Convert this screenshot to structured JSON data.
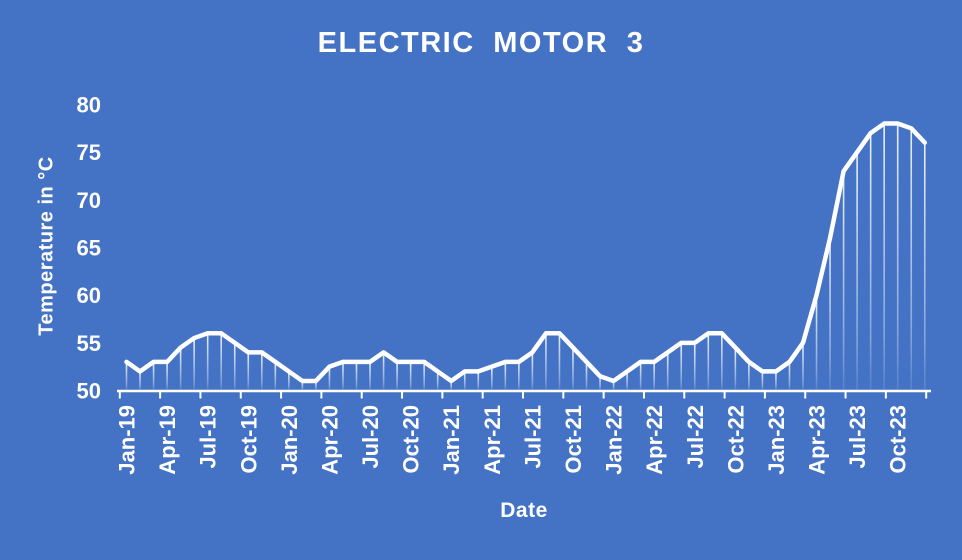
{
  "window": {
    "background": "#4472C4"
  },
  "chart": {
    "title": "ELECTRIC MOTOR 3",
    "xlabel": "Date",
    "ylabel": "Temperature in °C"
  },
  "chart_data": {
    "type": "line",
    "title": "ELECTRIC MOTOR 3",
    "xlabel": "Date",
    "ylabel": "Temperature in °C",
    "ylim": [
      50,
      80
    ],
    "yticks": [
      50,
      55,
      60,
      65,
      70,
      75,
      80
    ],
    "x_tick_labels": [
      "Jan-19",
      "Apr-19",
      "Jul-19",
      "Oct-19",
      "Jan-20",
      "Apr-20",
      "Jul-20",
      "Oct-20",
      "Jan-21",
      "Apr-21",
      "Jul-21",
      "Oct-21",
      "Jan-22",
      "Apr-22",
      "Jul-22",
      "Oct-22",
      "Jan-23",
      "Apr-23",
      "Jul-23",
      "Oct-23"
    ],
    "categories": [
      "Jan-19",
      "Feb-19",
      "Mar-19",
      "Apr-19",
      "May-19",
      "Jun-19",
      "Jul-19",
      "Aug-19",
      "Sep-19",
      "Oct-19",
      "Nov-19",
      "Dec-19",
      "Jan-20",
      "Feb-20",
      "Mar-20",
      "Apr-20",
      "May-20",
      "Jun-20",
      "Jul-20",
      "Aug-20",
      "Sep-20",
      "Oct-20",
      "Nov-20",
      "Dec-20",
      "Jan-21",
      "Feb-21",
      "Mar-21",
      "Apr-21",
      "May-21",
      "Jun-21",
      "Jul-21",
      "Aug-21",
      "Sep-21",
      "Oct-21",
      "Nov-21",
      "Dec-21",
      "Jan-22",
      "Feb-22",
      "Mar-22",
      "Apr-22",
      "May-22",
      "Jun-22",
      "Jul-22",
      "Aug-22",
      "Sep-22",
      "Oct-22",
      "Nov-22",
      "Dec-22",
      "Jan-23",
      "Feb-23",
      "Mar-23",
      "Apr-23",
      "May-23",
      "Jun-23",
      "Jul-23",
      "Aug-23",
      "Sep-23",
      "Oct-23",
      "Nov-23",
      "Dec-23"
    ],
    "series": [
      {
        "name": "Temperature",
        "values": [
          53,
          52,
          53,
          53,
          54.5,
          55.5,
          56,
          56,
          55,
          54,
          54,
          53,
          52,
          51,
          51,
          52.5,
          53,
          53,
          53,
          54,
          53,
          53,
          53,
          52,
          51,
          52,
          52,
          52.5,
          53,
          53,
          54,
          56,
          56,
          54.5,
          53,
          51.5,
          51,
          52,
          53,
          53,
          54,
          55,
          55,
          56,
          56,
          54.5,
          53,
          52,
          52,
          53,
          55,
          60,
          66,
          73,
          75,
          77,
          78,
          78,
          77.5,
          76
        ]
      }
    ],
    "legend": false,
    "grid": false,
    "drop_lines": true,
    "line_color": "#FFFFFF",
    "axis_color": "#FFFFFF",
    "background": "#4472C4"
  }
}
